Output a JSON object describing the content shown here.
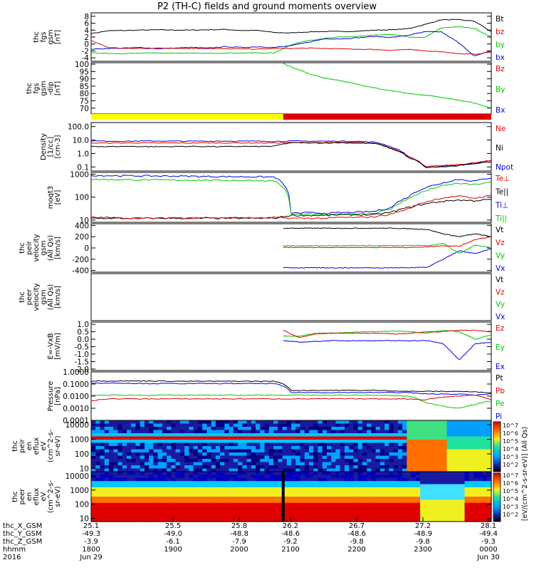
{
  "title": "P2 (TH-C) fields and ground moments overview",
  "colors": {
    "black": "#000000",
    "red": "#e00000",
    "green": "#00c800",
    "blue": "#0000e0",
    "yellow": "#ffff00"
  },
  "panels": [
    {
      "id": "fgs",
      "ylabel": [
        "thc",
        "fgs",
        "gsm",
        "[nT]"
      ],
      "scale": "linear",
      "ylim": [
        -5,
        9
      ],
      "ticks": [
        "8",
        "6",
        "4",
        "2",
        "0",
        "-2",
        "-4"
      ],
      "legend": [
        {
          "t": "Bt",
          "c": "black"
        },
        {
          "t": "bz",
          "c": "red"
        },
        {
          "t": "by",
          "c": "green"
        },
        {
          "t": "bx",
          "c": "blue"
        }
      ],
      "series": [
        {
          "c": "black",
          "v": [
            3.0,
            3.8,
            3.9,
            4.0,
            4.1,
            4.0,
            4.0,
            4.1,
            4.2,
            3.9,
            3.9,
            3.3,
            3.2,
            3.5,
            3.6,
            3.6,
            3.7,
            4.0,
            4.1,
            4.4,
            5.6,
            7.0,
            7.0,
            6.6,
            3.5
          ]
        },
        {
          "c": "green",
          "v": [
            -2.5,
            -2.8,
            -2.8,
            -2.6,
            -2.6,
            -2.6,
            -2.7,
            -2.7,
            -2.6,
            -2.6,
            -2.6,
            -2.6,
            -0.2,
            1.0,
            1.6,
            2.0,
            2.2,
            2.5,
            2.8,
            2.0,
            1.8,
            4.6,
            5.0,
            4.5,
            2.0
          ]
        },
        {
          "c": "blue",
          "v": [
            -1.5,
            -1.3,
            -1.2,
            -1.0,
            -1.4,
            -1.2,
            -1.0,
            -1.2,
            -0.8,
            -1.0,
            -0.8,
            -1.0,
            -0.5,
            0.5,
            1.5,
            1.5,
            1.8,
            2.2,
            1.9,
            2.5,
            3.5,
            3.5,
            0.5,
            -3.5,
            -2.0
          ]
        },
        {
          "c": "red",
          "v": [
            1.0,
            -1.0,
            -1.3,
            -1.3,
            -1.2,
            -1.2,
            -1.3,
            -1.3,
            -1.4,
            -1.4,
            -1.5,
            -1.3,
            -1.3,
            -1.2,
            -1.3,
            -1.4,
            -1.5,
            -1.6,
            -1.8,
            -1.6,
            -2.0,
            -2.2,
            -2.8,
            -3.0,
            -2.3
          ]
        }
      ]
    },
    {
      "id": "fgsdip",
      "ylabel": [
        "thc",
        "fgs",
        "gsm",
        "-dip",
        "[nT]"
      ],
      "scale": "linear",
      "ylim": [
        66,
        101
      ],
      "ticks": [
        "100",
        "95",
        "90",
        "85",
        "80",
        "75",
        "70"
      ],
      "legend": [
        {
          "t": "Bz",
          "c": "red"
        },
        {
          "t": "By",
          "c": "green"
        },
        {
          "t": "Bx",
          "c": "blue"
        }
      ],
      "series": [
        {
          "c": "green",
          "x0": 0.48,
          "v": [
            100.5,
            96.5,
            93,
            90.5,
            89,
            87,
            85,
            83,
            81.5,
            80,
            79,
            78,
            76.5,
            75,
            73,
            70
          ]
        }
      ]
    },
    {
      "id": "mode",
      "bar": true,
      "segments": [
        {
          "from": 0,
          "to": 0.48,
          "c": "yellow"
        },
        {
          "from": 0.48,
          "to": 1,
          "c": "red"
        }
      ]
    },
    {
      "id": "density",
      "ylabel": [
        "Density",
        "[1/cc]",
        "[cm-3]"
      ],
      "scale": "log",
      "ylim": [
        0.05,
        200
      ],
      "ticks": [
        "100.0",
        "10.0",
        "1.0",
        "0.1"
      ],
      "tickvals": [
        100,
        10,
        1,
        0.1
      ],
      "legend": [
        {
          "t": "Ne",
          "c": "red"
        },
        {
          "t": "Ni",
          "c": "black"
        },
        {
          "t": "Npot",
          "c": "blue"
        }
      ],
      "series": [
        {
          "c": "blue",
          "v": [
            8.5,
            8.3,
            8.2,
            8.4,
            8.5,
            8.3,
            8.2,
            8.3,
            8.4,
            8.3,
            8.3,
            8.0,
            8.5,
            8.4,
            8.2,
            8.3,
            8.0,
            7.0,
            3.0,
            0.5,
            0.1,
            0.12,
            0.13,
            0.18,
            0.25
          ]
        },
        {
          "c": "red",
          "v": [
            6.0,
            6.0,
            6.1,
            6.2,
            6.0,
            6.1,
            6.0,
            6.2,
            6.1,
            6.2,
            6.1,
            6.1,
            6.5,
            6.5,
            6.4,
            6.6,
            6.4,
            5.8,
            2.5,
            0.6,
            0.1,
            0.12,
            0.15,
            0.2,
            0.3
          ]
        },
        {
          "c": "black",
          "v": [
            3.5,
            3.2,
            3.4,
            3.3,
            3.2,
            3.3,
            3.4,
            3.3,
            3.2,
            3.4,
            3.3,
            3.5,
            6.3,
            6.2,
            6.1,
            6.3,
            6.0,
            5.5,
            2.2,
            0.5,
            0.09,
            0.1,
            0.12,
            0.18,
            0.25
          ]
        }
      ]
    },
    {
      "id": "temp",
      "ylabel": [
        "moqt3",
        "[eV]"
      ],
      "scale": "log",
      "ylim": [
        8,
        1200
      ],
      "ticks": [
        "1000",
        "100",
        "10"
      ],
      "tickvals": [
        1000,
        100,
        10
      ],
      "legend": [
        {
          "t": "Te⊥",
          "c": "red"
        },
        {
          "t": "Te||",
          "c": "black"
        },
        {
          "t": "Ti⊥",
          "c": "blue"
        },
        {
          "t": "Ti||",
          "c": "green"
        }
      ],
      "series": [
        {
          "c": "blue",
          "v": [
            900,
            870,
            860,
            850,
            840,
            830,
            820,
            800,
            790,
            780,
            770,
            760,
            20,
            21,
            20,
            21,
            22,
            24,
            35,
            100,
            250,
            400,
            600,
            500,
            700
          ]
        },
        {
          "c": "green",
          "v": [
            600,
            590,
            580,
            570,
            560,
            560,
            550,
            550,
            540,
            540,
            530,
            520,
            18,
            18,
            17,
            18,
            19,
            20,
            30,
            80,
            180,
            300,
            400,
            350,
            450
          ]
        },
        {
          "c": "black",
          "v": [
            12,
            12,
            12,
            12,
            12,
            12,
            12,
            12,
            12,
            12,
            12,
            12,
            16,
            16,
            16,
            17,
            17,
            17,
            22,
            35,
            50,
            65,
            75,
            70,
            80
          ]
        },
        {
          "c": "red",
          "v": [
            13,
            13,
            12,
            12,
            12,
            13,
            12,
            13,
            12,
            13,
            12,
            13,
            12,
            12,
            12,
            13,
            13,
            14,
            18,
            30,
            60,
            90,
            110,
            90,
            120
          ]
        }
      ]
    },
    {
      "id": "peir",
      "ylabel": [
        "thc",
        "peir",
        "velocity",
        "gsm",
        "(All Qs)",
        "[km/s]"
      ],
      "scale": "linear",
      "ylim": [
        -430,
        430
      ],
      "ticks": [
        "400",
        "200",
        "0",
        "-200",
        "-400"
      ],
      "legend": [
        {
          "t": "Vt",
          "c": "black"
        },
        {
          "t": "Vz",
          "c": "red"
        },
        {
          "t": "Vy",
          "c": "green"
        },
        {
          "t": "Vx",
          "c": "blue"
        }
      ],
      "series": [
        {
          "c": "black",
          "x0": 0.48,
          "v": [
            350,
            350,
            350,
            350,
            350,
            350,
            350,
            350,
            340,
            330,
            250,
            200,
            250,
            200
          ]
        },
        {
          "c": "blue",
          "x0": 0.48,
          "v": [
            -350,
            -352,
            -352,
            -352,
            -352,
            -352,
            -352,
            -352,
            -350,
            -340,
            -200,
            -50,
            -100,
            -10
          ]
        },
        {
          "c": "green",
          "x0": 0.48,
          "v": [
            40,
            40,
            40,
            40,
            40,
            40,
            40,
            40,
            45,
            40,
            80,
            -100,
            50,
            0
          ]
        },
        {
          "c": "red",
          "x0": 0.48,
          "v": [
            10,
            10,
            10,
            10,
            10,
            10,
            10,
            10,
            10,
            20,
            40,
            30,
            150,
            200
          ]
        }
      ]
    },
    {
      "id": "peer",
      "ylabel": [
        "thc",
        "peer",
        "velocity",
        "gsm",
        "(All Qs)",
        "[km/s]"
      ],
      "scale": "linear",
      "ylim": [
        0,
        1
      ],
      "ticks": [],
      "legend": [
        {
          "t": "Vt",
          "c": "black"
        },
        {
          "t": "Vz",
          "c": "red"
        },
        {
          "t": "Vy",
          "c": "green"
        },
        {
          "t": "Vx",
          "c": "blue"
        }
      ],
      "series": []
    },
    {
      "id": "efield",
      "ylabel": [
        "E=-VxB",
        "[mV/m]"
      ],
      "scale": "linear",
      "ylim": [
        -2.1,
        1.15
      ],
      "ticks": [
        "1.0",
        "0.5",
        "0.0",
        "-0.5",
        "-1.0",
        "-1.5",
        "-2.0"
      ],
      "legend": [
        {
          "t": "Ez",
          "c": "red"
        },
        {
          "t": "Ey",
          "c": "green"
        },
        {
          "t": "Ex",
          "c": "blue"
        }
      ],
      "series": [
        {
          "c": "green",
          "x0": 0.48,
          "v": [
            0.2,
            0.2,
            0.4,
            0.4,
            0.45,
            0.5,
            0.5,
            0.55,
            0.5,
            0.4,
            0.6,
            0.5,
            0.0,
            0.3
          ]
        },
        {
          "c": "red",
          "x0": 0.48,
          "v": [
            0.6,
            0.1,
            0.35,
            0.4,
            0.4,
            0.4,
            0.4,
            0.35,
            0.4,
            0.5,
            0.5,
            0.6,
            0.6,
            0.5
          ]
        },
        {
          "c": "blue",
          "x0": 0.48,
          "v": [
            -0.1,
            -0.2,
            -0.15,
            -0.1,
            -0.1,
            -0.1,
            -0.1,
            -0.1,
            -0.1,
            -0.1,
            -0.3,
            -1.4,
            -0.3,
            -0.2
          ]
        }
      ]
    },
    {
      "id": "pressure",
      "ylabel": [
        "Pressure",
        "[nPa]"
      ],
      "scale": "log",
      "ylim": [
        0.0001,
        1
      ],
      "ticks": [
        "1.0000",
        "0.1000",
        "0.0100",
        "0.0010",
        "0.0001"
      ],
      "tickvals": [
        1,
        0.1,
        0.01,
        0.001,
        0.0001
      ],
      "legend": [
        {
          "t": "Pt",
          "c": "black"
        },
        {
          "t": "Pb",
          "c": "red"
        },
        {
          "t": "Pe",
          "c": "green"
        },
        {
          "t": "Pi",
          "c": "blue"
        }
      ],
      "series": [
        {
          "c": "black",
          "v": [
            0.18,
            0.18,
            0.18,
            0.18,
            0.18,
            0.17,
            0.17,
            0.17,
            0.17,
            0.17,
            0.17,
            0.17,
            0.03,
            0.03,
            0.03,
            0.03,
            0.03,
            0.03,
            0.028,
            0.025,
            0.025,
            0.025,
            0.025,
            0.022,
            0.02
          ]
        },
        {
          "c": "blue",
          "v": [
            0.12,
            0.12,
            0.12,
            0.11,
            0.11,
            0.11,
            0.11,
            0.11,
            0.11,
            0.11,
            0.11,
            0.11,
            0.02,
            0.02,
            0.02,
            0.02,
            0.02,
            0.02,
            0.02,
            0.02,
            0.015,
            0.015,
            0.015,
            0.012,
            0.015
          ]
        },
        {
          "c": "green",
          "v": [
            0.012,
            0.012,
            0.012,
            0.012,
            0.012,
            0.012,
            0.012,
            0.012,
            0.012,
            0.012,
            0.012,
            0.012,
            0.012,
            0.012,
            0.012,
            0.012,
            0.012,
            0.012,
            0.011,
            0.01,
            0.003,
            0.0015,
            0.001,
            0.002,
            0.004
          ]
        },
        {
          "c": "red",
          "v": [
            0.004,
            0.006,
            0.006,
            0.006,
            0.006,
            0.006,
            0.006,
            0.006,
            0.006,
            0.006,
            0.006,
            0.006,
            0.006,
            0.006,
            0.006,
            0.006,
            0.006,
            0.006,
            0.006,
            0.006,
            0.005,
            0.008,
            0.01,
            0.012,
            0.005
          ]
        }
      ]
    },
    {
      "id": "peir_spec",
      "ylabel": [
        "thc",
        "peir",
        "en",
        "eflux",
        "eV",
        "(cm^2-s-",
        "sr-eV)"
      ],
      "scale": "log",
      "spectrogram": "ion",
      "ylim": [
        6,
        20000
      ],
      "ticks": [
        "10000",
        "1000",
        "100",
        "10"
      ],
      "tickvals": [
        10000,
        1000,
        100,
        10
      ]
    },
    {
      "id": "peer_spec",
      "ylabel": [
        "thc",
        "peer",
        "en",
        "eflux",
        "eV",
        "(cm^2-s-",
        "sr-eV)"
      ],
      "scale": "log",
      "spectrogram": "electron",
      "ylim": [
        6,
        20000
      ],
      "ticks": [
        "10000",
        "1000",
        "100",
        "10"
      ],
      "tickvals": [
        10000,
        1000,
        100,
        10
      ]
    }
  ],
  "colorbar": {
    "label": "[eV/(cm^2-s-sr-eV)] (All Qs)",
    "ticks": [
      "10^7",
      "10^6",
      "10^5",
      "10^4",
      "10^3",
      "10^2",
      "10^7",
      "10^6",
      "10^5",
      "10^4",
      "10^3",
      "10^2"
    ]
  },
  "chart_data": {
    "type": "line",
    "title": "P2 (TH-C) fields and ground moments overview",
    "x_axis": {
      "row_labels": [
        "thc_X_GSM",
        "thc_Y_GSM",
        "thc_Z_GSM",
        "hhmm",
        "2016"
      ],
      "columns": [
        {
          "x": [
            "25.1",
            "-49.3",
            "-3.9",
            "1800",
            "Jun 29"
          ]
        },
        {
          "x": [
            "25.5",
            "-49.0",
            "-6.1",
            "1900",
            ""
          ]
        },
        {
          "x": [
            "25.8",
            "-48.8",
            "-7.9",
            "2000",
            ""
          ]
        },
        {
          "x": [
            "26.2",
            "-48.6",
            "-9.2",
            "2100",
            ""
          ]
        },
        {
          "x": [
            "26.7",
            "-48.6",
            "-9.8",
            "2200",
            ""
          ]
        },
        {
          "x": [
            "27.2",
            "-48.9",
            "-9.8",
            "2300",
            ""
          ]
        },
        {
          "x": [
            "28.1",
            "-49.4",
            "-9.3",
            "0000",
            "Jun 30"
          ]
        }
      ]
    }
  }
}
